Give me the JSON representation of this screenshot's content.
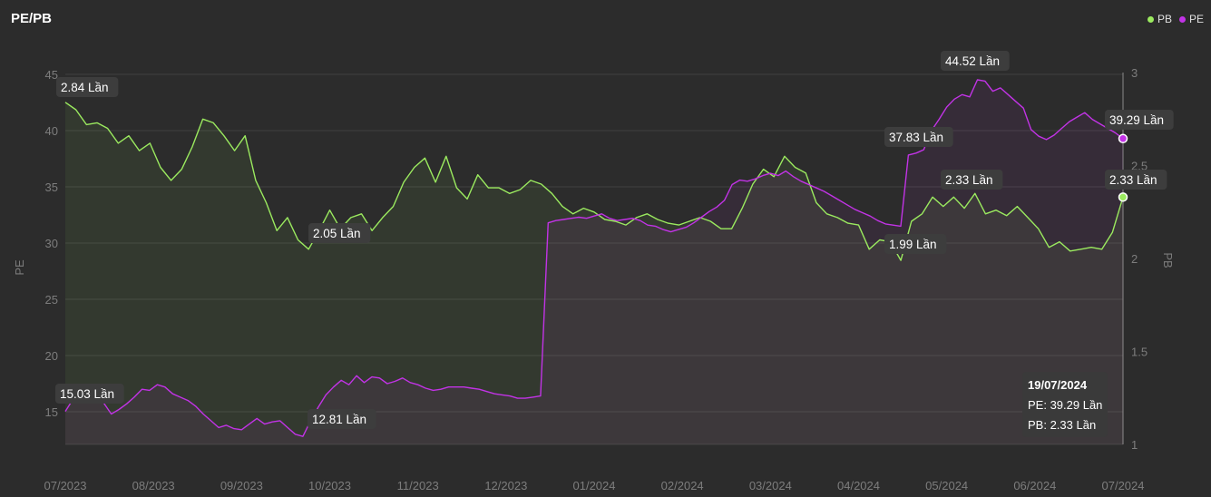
{
  "title": "PE/PB",
  "legend": [
    {
      "label": "PB",
      "color": "#9bea5f"
    },
    {
      "label": "PE",
      "color": "#c233e6"
    }
  ],
  "tooltip": {
    "date": "19/07/2024",
    "pe_line": "PE: 39.29 Lần",
    "pb_line": "PB: 2.33 Lần"
  },
  "chart_data": {
    "type": "line",
    "x_tick_labels": [
      "07/2023",
      "08/2023",
      "09/2023",
      "10/2023",
      "11/2023",
      "12/2023",
      "01/2024",
      "02/2024",
      "03/2024",
      "04/2024",
      "05/2024",
      "06/2024",
      "07/2024"
    ],
    "left_axis": {
      "label": "PE",
      "ticks": [
        15,
        20,
        25,
        30,
        35,
        40,
        45
      ],
      "range": [
        12,
        45
      ]
    },
    "right_axis": {
      "label": "PB",
      "ticks": [
        1,
        1.5,
        2,
        2.5,
        3
      ],
      "range": [
        1,
        3
      ]
    },
    "grid": true,
    "legend_position": "top-right",
    "series": [
      {
        "name": "PB",
        "axis": "right",
        "color": "#9bea5f",
        "values": [
          2.84,
          2.8,
          2.72,
          2.73,
          2.7,
          2.62,
          2.66,
          2.58,
          2.62,
          2.49,
          2.42,
          2.48,
          2.6,
          2.75,
          2.73,
          2.66,
          2.58,
          2.66,
          2.42,
          2.3,
          2.15,
          2.22,
          2.1,
          2.05,
          2.15,
          2.26,
          2.16,
          2.22,
          2.24,
          2.15,
          2.22,
          2.28,
          2.41,
          2.49,
          2.54,
          2.41,
          2.55,
          2.38,
          2.32,
          2.45,
          2.38,
          2.38,
          2.35,
          2.37,
          2.42,
          2.4,
          2.35,
          2.28,
          2.24,
          2.27,
          2.25,
          2.21,
          2.2,
          2.18,
          2.22,
          2.24,
          2.21,
          2.19,
          2.18,
          2.2,
          2.22,
          2.2,
          2.16,
          2.16,
          2.27,
          2.4,
          2.48,
          2.44,
          2.55,
          2.49,
          2.46,
          2.3,
          2.24,
          2.22,
          2.19,
          2.18,
          2.05,
          2.1,
          2.09,
          1.99,
          2.2,
          2.24,
          2.33,
          2.28,
          2.33,
          2.27,
          2.35,
          2.24,
          2.26,
          2.23,
          2.28,
          2.22,
          2.16,
          2.06,
          2.09,
          2.04,
          2.05,
          2.06,
          2.05,
          2.14,
          2.33
        ],
        "annotations": [
          {
            "text": "2.84 Lần"
          },
          {
            "text": "2.05 Lần"
          },
          {
            "text": "1.99 Lần"
          },
          {
            "text": "2.33 Lần"
          },
          {
            "text": "2.33 Lần"
          }
        ]
      },
      {
        "name": "PE",
        "axis": "left",
        "color": "#c233e6",
        "values": [
          15.03,
          16.1,
          17.2,
          16.8,
          16.2,
          15.8,
          14.8,
          15.2,
          15.7,
          16.3,
          17.0,
          16.9,
          17.4,
          17.2,
          16.6,
          16.3,
          16.0,
          15.5,
          14.8,
          14.2,
          13.6,
          13.8,
          13.5,
          13.4,
          13.9,
          14.4,
          13.9,
          14.1,
          14.2,
          13.6,
          13.0,
          12.81,
          14.2,
          15.4,
          16.5,
          17.2,
          17.8,
          17.4,
          18.2,
          17.6,
          18.1,
          18.0,
          17.5,
          17.7,
          18.0,
          17.6,
          17.4,
          17.1,
          16.9,
          17.0,
          17.2,
          17.2,
          17.2,
          17.1,
          17.0,
          16.8,
          16.6,
          16.5,
          16.4,
          16.2,
          16.2,
          16.3,
          16.4,
          31.8,
          32.0,
          32.1,
          32.2,
          32.3,
          32.2,
          32.4,
          32.6,
          32.2,
          32.0,
          32.1,
          32.2,
          32.0,
          31.6,
          31.5,
          31.2,
          31.0,
          31.2,
          31.4,
          31.8,
          32.3,
          32.8,
          33.2,
          33.8,
          35.2,
          35.6,
          35.5,
          35.7,
          36.0,
          36.2,
          36.0,
          36.4,
          35.9,
          35.5,
          35.2,
          34.9,
          34.6,
          34.2,
          33.8,
          33.4,
          33.0,
          32.7,
          32.4,
          32.0,
          31.7,
          31.6,
          31.5,
          37.83,
          38.0,
          38.3,
          40.0,
          41.0,
          42.1,
          42.8,
          43.2,
          43.0,
          44.52,
          44.4,
          43.5,
          43.8,
          43.2,
          42.6,
          42.0,
          40.1,
          39.5,
          39.2,
          39.6,
          40.2,
          40.8,
          41.2,
          41.6,
          41.0,
          40.6,
          40.2,
          39.8,
          39.29
        ],
        "annotations": [
          {
            "text": "15.03 Lần"
          },
          {
            "text": "12.81 Lần"
          },
          {
            "text": "37.83 Lần"
          },
          {
            "text": "44.52 Lần"
          },
          {
            "text": "39.29 Lần"
          }
        ]
      }
    ]
  }
}
